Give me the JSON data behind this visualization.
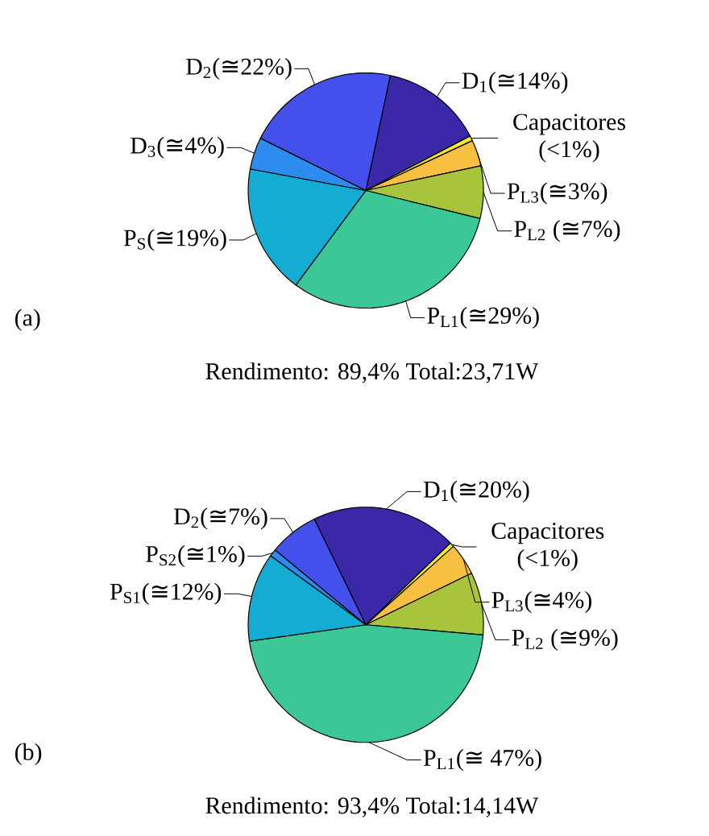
{
  "chart_data": [
    {
      "type": "pie",
      "categories": [
        "D$_{1}$(≅14%)",
        "Capacitores (<1%)",
        "P$_{L3}$(≅3%)",
        "P$_{L2}$ (≅7%)",
        "P$_{L1}$(≅29%)",
        "P$_{S}$(≅19%)",
        "D$_{3}$(≅4%)",
        "D$_{2}$(≅22%)"
      ],
      "values": [
        14,
        0.7,
        3.6,
        7.2,
        31.3,
        17.8,
        4.4,
        21
      ],
      "colors": [
        "#3a28a8",
        "#f5ee1e",
        "#f8c040",
        "#a8c43c",
        "#3cc896",
        "#14acd2",
        "#2c8cf0",
        "#4450ec"
      ],
      "annotations": [
        "(a)",
        "Rendimento: 89,4% Total:23,71W"
      ]
    },
    {
      "type": "pie",
      "categories": [
        "D$_{1}$(≅20%)",
        "Capacitores (<1%)",
        "P$_{L3}$(≅4%)",
        "P$_{L2}$ (≅9%)",
        "P$_{L1}$(≅ 47%)",
        "P$_{S1}$(≅12%)",
        "P$_{S2}$(≅1%)",
        "D$_{2}$(≅7%)"
      ],
      "values": [
        20,
        0.6,
        4.4,
        8.6,
        46.4,
        12.2,
        1,
        6.8
      ],
      "colors": [
        "#3a28a8",
        "#f5ee1e",
        "#f8c040",
        "#a8c43c",
        "#3cc896",
        "#14acd2",
        "#2c8cf0",
        "#4450ec"
      ],
      "annotations": [
        "(b)",
        "Rendimento: 93,4% Total:14,14W"
      ]
    }
  ]
}
